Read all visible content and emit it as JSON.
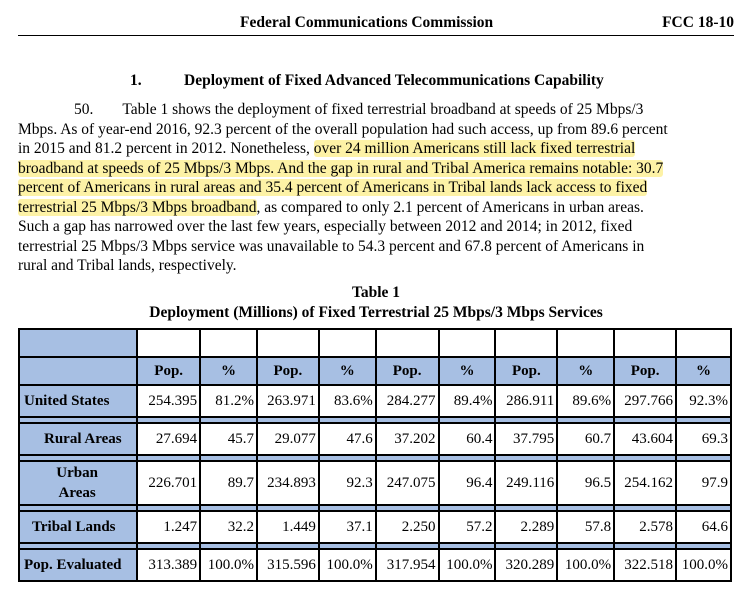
{
  "header": {
    "agency": "Federal Communications Commission",
    "doc_id": "FCC 18-10"
  },
  "section": {
    "number": "1.",
    "title": "Deployment of Fixed Advanced Telecommunications Capability"
  },
  "paragraph": {
    "number": "50.",
    "l1_rest": "Table 1 shows the deployment of fixed terrestrial broadband at speeds of 25 Mbps/3",
    "l2": "Mbps.  As of year-end 2016, 92.3 percent of the overall population had such access, up from 89.6 percent",
    "l3_a": "in 2015 and 81.2 percent in 2012.  Nonetheless, ",
    "l3_b": "over 24 million Americans still lack fixed terrestrial",
    "l4": "broadband at speeds of 25 Mbps/3 Mbps.  And the gap in rural and Tribal America remains notable:  30.7",
    "l5": "percent of Americans in rural areas and 35.4 percent of Americans in Tribal lands lack access to fixed",
    "l6_a": "terrestrial 25 Mbps/3 Mbps broadband",
    "l6_b": ", as compared to only 2.1 percent of Americans in urban areas.",
    "l7": "Such a gap has narrowed over the last few years, especially between 2012 and 2014; in 2012, fixed",
    "l8": "terrestrial 25 Mbps/3 Mbps service was unavailable to 54.3 percent and 67.8 percent of Americans in",
    "l9": "rural and Tribal lands, respectively."
  },
  "table": {
    "caption": "Table 1",
    "title": "Deployment (Millions) of Fixed Terrestrial 25 Mbps/3 Mbps Services",
    "col_pop": "Pop.",
    "col_pct": "%",
    "rows": [
      {
        "label": "United States",
        "cells": [
          "254.395",
          "81.2%",
          "263.971",
          "83.6%",
          "284.277",
          "89.4%",
          "286.911",
          "89.6%",
          "297.766",
          "92.3%"
        ]
      },
      {
        "label": "Rural Areas",
        "cells": [
          "27.694",
          "45.7",
          "29.077",
          "47.6",
          "37.202",
          "60.4",
          "37.795",
          "60.7",
          "43.604",
          "69.3"
        ]
      },
      {
        "label_line1": "Urban",
        "label_line2": "Areas",
        "cells": [
          "226.701",
          "89.7",
          "234.893",
          "92.3",
          "247.075",
          "96.4",
          "249.116",
          "96.5",
          "254.162",
          "97.9"
        ]
      },
      {
        "label": "Tribal Lands",
        "cells": [
          "1.247",
          "32.2",
          "1.449",
          "37.1",
          "2.250",
          "57.2",
          "2.289",
          "57.8",
          "2.578",
          "64.6"
        ]
      },
      {
        "label": "Pop. Evaluated",
        "cells": [
          "313.389",
          "100.0%",
          "315.596",
          "100.0%",
          "317.954",
          "100.0%",
          "320.289",
          "100.0%",
          "322.518",
          "100.0%"
        ]
      }
    ]
  }
}
